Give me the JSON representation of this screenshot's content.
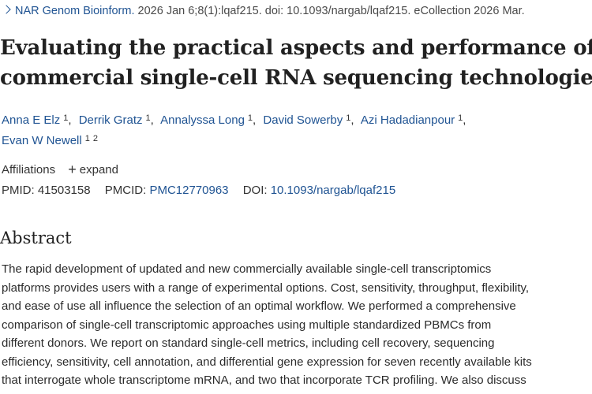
{
  "citation": {
    "journal": "NAR Genom Bioinform.",
    "details": "2026 Jan 6;8(1):lqaf215. doi: 10.1093/nargab/lqaf215. eCollection 2026 Mar."
  },
  "article": {
    "title_line1": "Evaluating the practical aspects and performance of",
    "title_line2": "commercial single-cell RNA sequencing technologies"
  },
  "authors": [
    {
      "name": "Anna E Elz",
      "aff": "1",
      "sep": ","
    },
    {
      "name": "Derrik Gratz",
      "aff": "1",
      "sep": ","
    },
    {
      "name": "Annalyssa Long",
      "aff": "1",
      "sep": ","
    },
    {
      "name": "David Sowerby",
      "aff": "1",
      "sep": ","
    },
    {
      "name": "Azi Hadadianpour",
      "aff": "1",
      "sep": ","
    },
    {
      "name": "Evan W Newell",
      "aff1": "1",
      "aff2": "2"
    }
  ],
  "affiliations": {
    "label": "Affiliations",
    "expand_icon": "+",
    "expand_label": "expand"
  },
  "ids": {
    "pmid_label": "PMID:",
    "pmid": "41503158",
    "pmcid_label": "PMCID:",
    "pmcid": "PMC12770963",
    "doi_label": "DOI:",
    "doi": "10.1093/nargab/lqaf215"
  },
  "abstract": {
    "heading": "Abstract",
    "lines": [
      "The rapid development of updated and new commercially available single-cell transcriptomics",
      "platforms provides users with a range of experimental options. Cost, sensitivity, throughput, flexibility,",
      "and ease of use all influence the selection of an optimal workflow. We performed a comprehensive",
      "comparison of single-cell transcriptomic approaches using multiple standardized PBMCs from",
      "different donors. We report on standard single-cell metrics, including cell recovery, sequencing",
      "efficiency, sensitivity, cell annotation, and differential gene expression for seven recently available kits",
      "that interrogate whole transcriptome mRNA, and two that incorporate TCR profiling. We also discuss"
    ]
  },
  "colors": {
    "link": "#205493",
    "text": "#212121"
  }
}
